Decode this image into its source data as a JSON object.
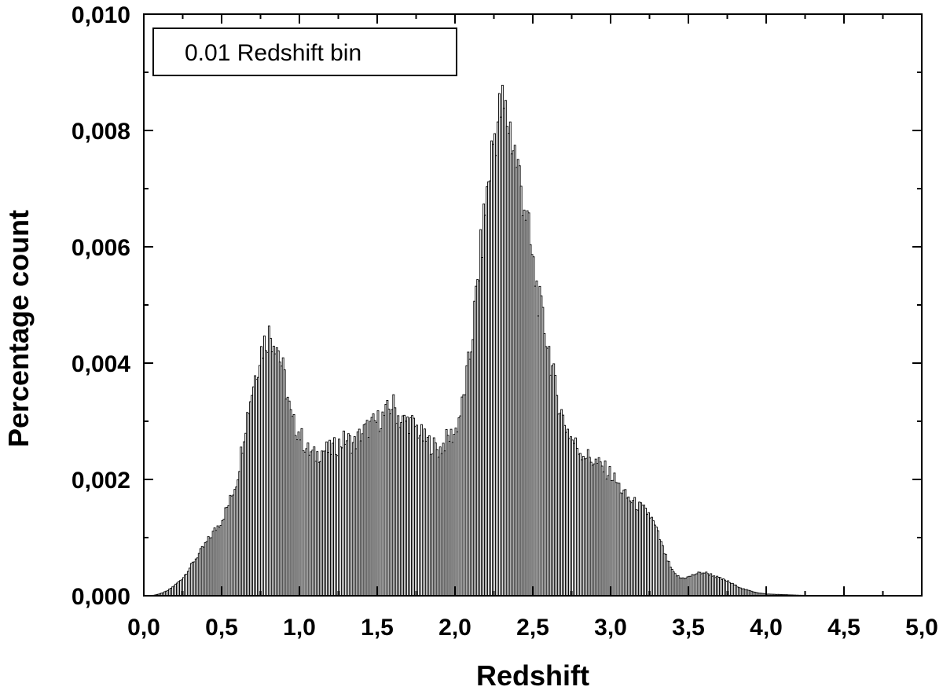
{
  "chart_data": {
    "type": "bar",
    "xlabel": "Redshift",
    "ylabel": "Percentage count",
    "legend_label": "0.01 Redshift bin",
    "legend_position": "top-left",
    "grid": false,
    "xlim": [
      0.0,
      5.0
    ],
    "ylim": [
      0.0,
      0.01
    ],
    "bin_width": 0.01,
    "x_tick_labels": [
      "0,0",
      "0,5",
      "1,0",
      "1,5",
      "2,0",
      "2,5",
      "3,0",
      "3,5",
      "4,0",
      "4,5",
      "5,0"
    ],
    "y_tick_labels": [
      "0,000",
      "0,002",
      "0,004",
      "0,006",
      "0,008",
      "0,010"
    ],
    "x_ticks": [
      0.0,
      0.5,
      1.0,
      1.5,
      2.0,
      2.5,
      3.0,
      3.5,
      4.0,
      4.5,
      5.0
    ],
    "y_ticks": [
      0.0,
      0.002,
      0.004,
      0.006,
      0.008,
      0.01
    ],
    "bar_color": "#ffffff",
    "bar_stroke": "#000000",
    "series": [
      {
        "x": [
          0.05,
          0.1,
          0.15,
          0.2,
          0.25,
          0.3,
          0.35,
          0.4,
          0.45,
          0.5,
          0.55,
          0.6,
          0.65,
          0.7,
          0.75,
          0.8,
          0.85,
          0.9,
          0.95,
          1.0,
          1.05,
          1.1,
          1.15,
          1.2,
          1.25,
          1.3,
          1.35,
          1.4,
          1.45,
          1.5,
          1.55,
          1.6,
          1.65,
          1.7,
          1.75,
          1.8,
          1.85,
          1.9,
          1.95,
          2.0,
          2.05,
          2.1,
          2.15,
          2.2,
          2.25,
          2.3,
          2.35,
          2.4,
          2.45,
          2.5,
          2.55,
          2.6,
          2.65,
          2.7,
          2.75,
          2.8,
          2.85,
          2.9,
          2.95,
          3.0,
          3.05,
          3.1,
          3.15,
          3.2,
          3.25,
          3.3,
          3.35,
          3.4,
          3.45,
          3.5,
          3.55,
          3.6,
          3.65,
          3.7,
          3.75,
          3.8,
          3.85,
          3.9,
          3.95,
          4.0,
          4.1,
          4.2,
          4.3,
          4.4,
          4.5
        ],
        "values": [
          0.0,
          3e-05,
          8e-05,
          0.00018,
          0.0003,
          0.0005,
          0.0007,
          0.0009,
          0.0011,
          0.0013,
          0.0016,
          0.002,
          0.0029,
          0.0036,
          0.0042,
          0.0045,
          0.0044,
          0.0038,
          0.003,
          0.0028,
          0.0025,
          0.0024,
          0.0025,
          0.0025,
          0.0026,
          0.0027,
          0.0026,
          0.0028,
          0.0029,
          0.003,
          0.0031,
          0.0033,
          0.003,
          0.003,
          0.0029,
          0.0027,
          0.0026,
          0.0025,
          0.0027,
          0.0028,
          0.0033,
          0.0042,
          0.0055,
          0.0068,
          0.0079,
          0.0084,
          0.0081,
          0.0074,
          0.0067,
          0.0057,
          0.0049,
          0.0043,
          0.0035,
          0.003,
          0.0027,
          0.0025,
          0.0024,
          0.0023,
          0.0022,
          0.0021,
          0.0019,
          0.0017,
          0.0016,
          0.0015,
          0.0014,
          0.0011,
          0.0007,
          0.0004,
          0.0003,
          0.00032,
          0.00038,
          0.0004,
          0.00036,
          0.0003,
          0.00025,
          0.00018,
          0.00012,
          8e-05,
          5e-05,
          3e-05,
          2e-05,
          1e-05,
          5e-06,
          0.0,
          0.0
        ]
      }
    ]
  }
}
